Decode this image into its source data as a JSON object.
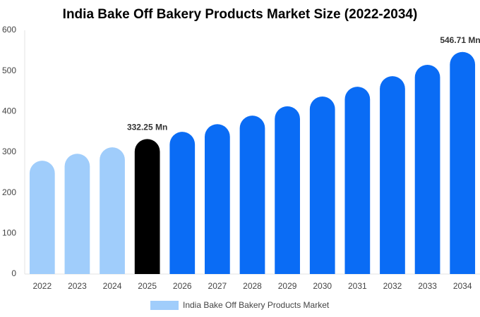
{
  "chart_data": {
    "type": "bar",
    "title": "India Bake Off Bakery Products Market Size (2022-2034)",
    "categories": [
      "2022",
      "2023",
      "2024",
      "2025",
      "2026",
      "2027",
      "2028",
      "2029",
      "2030",
      "2031",
      "2032",
      "2033",
      "2034"
    ],
    "series": [
      {
        "name": "India Bake Off Bakery Products Market",
        "color": "#a0cdfb",
        "values": [
          279,
          296,
          312,
          332.25,
          350,
          369,
          390,
          413,
          437,
          461,
          487,
          515,
          546.71
        ],
        "value_labels": [
          null,
          null,
          null,
          "332.25 Mn",
          null,
          null,
          null,
          null,
          null,
          null,
          null,
          null,
          "546.71 Mn"
        ],
        "bar_colors": [
          "#a0cdfb",
          "#a0cdfb",
          "#a0cdfb",
          "#000000",
          "#0a6cf5",
          "#0a6cf5",
          "#0a6cf5",
          "#0a6cf5",
          "#0a6cf5",
          "#0a6cf5",
          "#0a6cf5",
          "#0a6cf5",
          "#0a6cf5"
        ]
      }
    ],
    "ylim": [
      0,
      600
    ],
    "yticks": [
      0,
      100,
      200,
      300,
      400,
      500,
      600
    ],
    "grid": false,
    "legend": "bottom"
  }
}
